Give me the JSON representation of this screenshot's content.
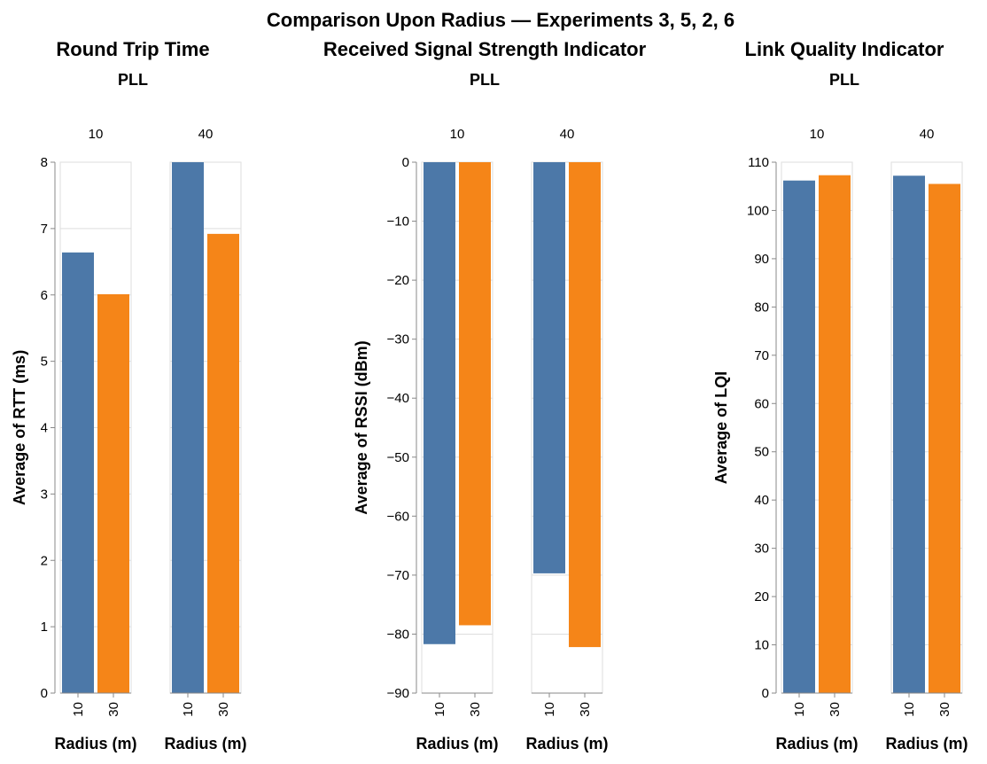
{
  "title": "Comparison Upon Radius — Experiments 3, 5, 2, 6",
  "colors": {
    "blue": "#4c78a8",
    "orange": "#f58518",
    "grid": "#dddddd",
    "axis": "#888888"
  },
  "chart_data": [
    {
      "type": "bar",
      "title": "Round Trip Time",
      "subtitle": "PLL",
      "ylabel": "Average of RTT (ms)",
      "xlabel": "Radius (m)",
      "ylim": [
        0,
        8
      ],
      "yticks": [
        "0",
        "1",
        "2",
        "3",
        "4",
        "5",
        "6",
        "7",
        "8"
      ],
      "facets": [
        {
          "header": "40",
          "categories": [
            "10",
            "30"
          ],
          "values": [
            8.0,
            6.92
          ]
        }
      ],
      "facet_first": {
        "header": "10",
        "categories": [
          "10",
          "30"
        ],
        "values": [
          6.64,
          6.01
        ]
      },
      "grid": true
    },
    {
      "type": "bar",
      "title": "Received Signal Strength Indicator",
      "subtitle": "PLL",
      "ylabel": "Average of RSSI (dBm)",
      "xlabel": "Radius (m)",
      "ylim": [
        -90,
        0
      ],
      "yticks": [
        "−90",
        "−80",
        "−70",
        "−60",
        "−50",
        "−40",
        "−30",
        "−20",
        "−10",
        "0"
      ],
      "facets": [
        {
          "header": "40",
          "categories": [
            "10",
            "30"
          ],
          "values": [
            -69.7,
            -82.2
          ]
        }
      ],
      "facet_first": {
        "header": "10",
        "categories": [
          "10",
          "30"
        ],
        "values": [
          -81.7,
          -78.5
        ]
      },
      "grid": true
    },
    {
      "type": "bar",
      "title": "Link Quality Indicator",
      "subtitle": "PLL",
      "ylabel": "Average of LQI",
      "xlabel": "Radius (m)",
      "ylim": [
        0,
        110
      ],
      "yticks": [
        "0",
        "10",
        "20",
        "30",
        "40",
        "50",
        "60",
        "70",
        "80",
        "90",
        "100",
        "110"
      ],
      "facets": [
        {
          "header": "40",
          "categories": [
            "10",
            "30"
          ],
          "values": [
            107.2,
            105.5
          ]
        }
      ],
      "facet_first": {
        "header": "10",
        "categories": [
          "10",
          "30"
        ],
        "values": [
          106.2,
          107.3
        ]
      },
      "grid": true
    }
  ]
}
